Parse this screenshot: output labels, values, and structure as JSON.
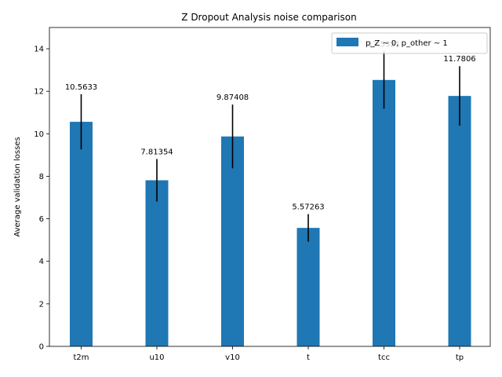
{
  "chart_data": {
    "type": "bar",
    "title": "Z Dropout Analysis noise comparison",
    "xlabel": "",
    "ylabel": "Average validation losses",
    "categories": [
      "t2m",
      "u10",
      "v10",
      "t",
      "tcc",
      "tp"
    ],
    "series": [
      {
        "name": "p_Z ~ 0, p_other ~ 1",
        "values": [
          10.5633,
          7.81354,
          9.87408,
          5.57263,
          12.5321,
          11.7806
        ],
        "errors": [
          1.3,
          1.0,
          1.5,
          0.65,
          1.35,
          1.4
        ],
        "labels": [
          "10.5633",
          "7.81354",
          "9.87408",
          "5.57263",
          "12.5321",
          "11.7806"
        ],
        "color": "#1f77b4"
      }
    ],
    "ylim": [
      0,
      15
    ],
    "yticks": [
      0,
      2,
      4,
      6,
      8,
      10,
      12,
      14
    ],
    "grid": false,
    "legend_position": "top-right",
    "error_bar_color": "#000000"
  }
}
